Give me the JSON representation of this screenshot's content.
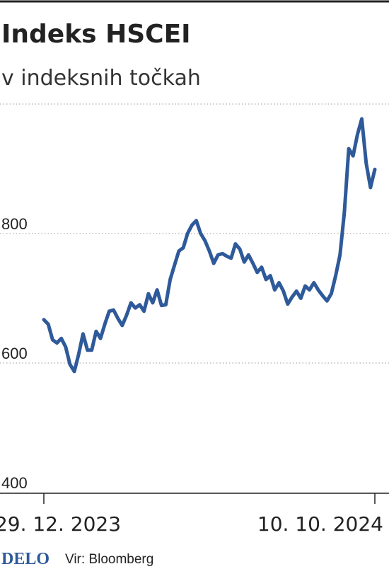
{
  "chart_data": {
    "type": "line",
    "title": "Indeks HSCEI",
    "subtitle": "v indeksnih točkah",
    "categories": [
      "29. 12. 2023",
      null,
      null,
      null,
      null,
      null,
      null,
      null,
      null,
      null,
      null,
      null,
      null,
      null,
      null,
      null,
      null,
      null,
      null,
      null,
      null,
      null,
      null,
      null,
      null,
      null,
      null,
      null,
      null,
      null,
      null,
      null,
      null,
      null,
      null,
      null,
      null,
      null,
      null,
      null,
      null,
      null,
      null,
      null,
      null,
      null,
      null,
      null,
      null,
      null,
      null,
      null,
      null,
      null,
      null,
      null,
      null,
      null,
      null,
      null,
      null,
      null,
      null,
      null,
      null,
      null,
      null,
      null,
      null,
      null,
      null,
      null,
      null,
      null,
      null,
      null,
      "10. 10. 2024"
    ],
    "values": [
      667,
      660,
      636,
      631,
      638,
      625,
      598,
      587,
      614,
      645,
      620,
      620,
      649,
      638,
      660,
      680,
      682,
      669,
      658,
      674,
      693,
      685,
      690,
      680,
      707,
      693,
      713,
      689,
      690,
      729,
      751,
      773,
      778,
      800,
      813,
      820,
      800,
      789,
      773,
      754,
      767,
      769,
      765,
      762,
      784,
      776,
      756,
      767,
      754,
      740,
      748,
      729,
      735,
      713,
      724,
      711,
      691,
      702,
      711,
      700,
      719,
      713,
      724,
      713,
      704,
      696,
      707,
      735,
      767,
      833,
      931,
      920,
      953,
      977,
      909,
      871,
      899
    ],
    "color": "#2e5a9a",
    "ylim": [
      400,
      1000
    ],
    "yticks": [
      400,
      600,
      800
    ],
    "grid": true,
    "brand": "DELO",
    "source": "Vir: Bloomberg"
  }
}
